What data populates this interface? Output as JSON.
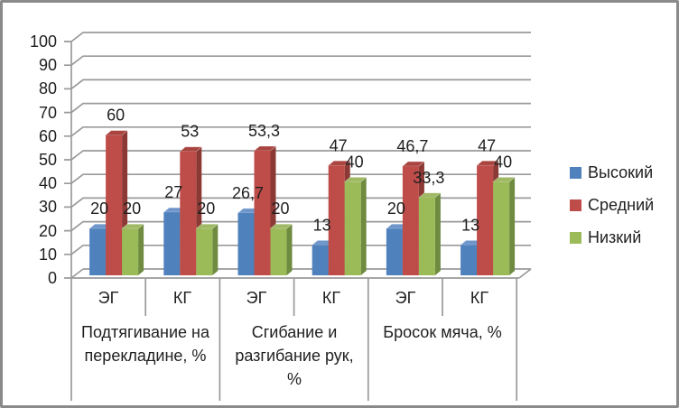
{
  "chart_data": {
    "type": "bar",
    "style": "3d-clustered-column",
    "title": "",
    "categories": [
      "ЭГ",
      "КГ",
      "ЭГ",
      "КГ",
      "ЭГ",
      "КГ"
    ],
    "groups": [
      {
        "label": "Подтягивание на перекладине, %"
      },
      {
        "label": "Сгибание и разгибание рук, %"
      },
      {
        "label": "Бросок мяча, %"
      }
    ],
    "series": [
      {
        "name": "Высокий",
        "color": "#4F81BD",
        "top_color": "#6F96CB",
        "side_color": "#3A618F",
        "values": [
          20,
          27,
          26.7,
          13,
          20,
          13
        ],
        "value_labels": [
          "20",
          "27",
          "26,7",
          "13",
          "20",
          "13"
        ]
      },
      {
        "name": "Средний",
        "color": "#BE4C49",
        "top_color": "#A9443F",
        "side_color": "#8C3834",
        "values": [
          60,
          53,
          53.3,
          47,
          46.7,
          47
        ],
        "value_labels": [
          "60",
          "53",
          "53,3",
          "47",
          "46,7",
          "47"
        ]
      },
      {
        "name": "Низкий",
        "color": "#9BBB59",
        "top_color": "#9FB965",
        "side_color": "#6E8B40",
        "values": [
          20,
          20,
          20,
          40,
          33.3,
          40
        ],
        "value_labels": [
          "20",
          "20",
          "20",
          "40",
          "33,3",
          "40"
        ]
      }
    ],
    "y_axis": {
      "min": 0,
      "max": 100,
      "step": 10,
      "tick_labels": [
        "0",
        "10",
        "20",
        "30",
        "40",
        "50",
        "60",
        "70",
        "80",
        "90",
        "100"
      ]
    },
    "legend": {
      "position": "right"
    },
    "grid": true,
    "gridline_color": "#9a9a9a",
    "text_color": "#1f1f1f",
    "frame_border_color": "#8a8a8a"
  }
}
